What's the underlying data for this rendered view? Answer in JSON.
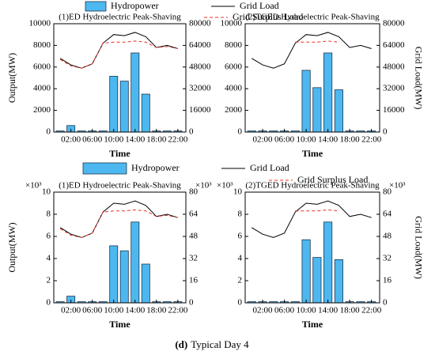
{
  "chart_data": [
    {
      "type": "bar_line",
      "title": "(1)ED Hydroelectric Peak-Shaving",
      "xlabel": "Time",
      "ylabel": "Output(MW)",
      "x": [
        0,
        2,
        4,
        6,
        8,
        10,
        12,
        14,
        16,
        18,
        20,
        22
      ],
      "series": [
        {
          "name": "Hydropower",
          "type": "bar",
          "axis": "y",
          "color": "#4db8ef",
          "values": [
            100,
            600,
            100,
            100,
            100,
            5150,
            4700,
            7300,
            3500,
            100,
            100,
            100
          ]
        },
        {
          "name": "Grid Load",
          "type": "line",
          "axis": "y2",
          "color": "#000000",
          "values": [
            54400,
            49600,
            47200,
            50400,
            65600,
            72000,
            71200,
            73600,
            70400,
            62400,
            64000,
            61600
          ]
        },
        {
          "name": "Grid Surplus Load",
          "type": "line",
          "dash": true,
          "axis": "y2",
          "color": "#e8332a",
          "values": [
            53600,
            48800,
            47200,
            50400,
            65600,
            66400,
            66400,
            67200,
            66400,
            62400,
            63200,
            61600
          ]
        }
      ],
      "xlim": [
        -1.2,
        23.5
      ],
      "xticks": [
        {
          "value": 2,
          "label": "02:00"
        },
        {
          "value": 6,
          "label": "06:00"
        },
        {
          "value": 10,
          "label": "10:00"
        },
        {
          "value": 14,
          "label": "14:00"
        },
        {
          "value": 18,
          "label": "18:00"
        },
        {
          "value": 22,
          "label": "22:00"
        }
      ],
      "ylim": [
        0,
        10000
      ],
      "yticks": [
        0,
        2000,
        4000,
        6000,
        8000,
        10000
      ],
      "y2lim": [
        0,
        80000
      ],
      "y2ticks": [
        0,
        16000,
        32000,
        48000,
        64000,
        80000
      ]
    },
    {
      "type": "bar_line",
      "title": "(2)TGED Hydroelectric Peak-Shaving",
      "xlabel": "Time",
      "y2label": "Grid Load(MW)",
      "x": [
        0,
        2,
        4,
        6,
        8,
        10,
        12,
        14,
        16,
        18,
        20,
        22
      ],
      "series": [
        {
          "name": "Hydropower",
          "type": "bar",
          "axis": "y",
          "color": "#4db8ef",
          "values": [
            100,
            100,
            100,
            100,
            100,
            5700,
            4100,
            7300,
            3900,
            100,
            100,
            100
          ]
        },
        {
          "name": "Grid Load",
          "type": "line",
          "axis": "y2",
          "color": "#000000",
          "values": [
            54400,
            49600,
            47200,
            50400,
            65600,
            72000,
            71200,
            73600,
            70400,
            62400,
            64000,
            61600
          ]
        },
        {
          "name": "Grid Surplus Load",
          "type": "line",
          "dash": true,
          "axis": "y2",
          "color": "#e8332a",
          "values": [
            null,
            null,
            null,
            null,
            66400,
            66400,
            66400,
            67200,
            66400,
            null,
            null,
            null
          ]
        }
      ],
      "xlim": [
        -1.2,
        23.5
      ],
      "xticks": [
        {
          "value": 2,
          "label": "02:00"
        },
        {
          "value": 6,
          "label": "06:00"
        },
        {
          "value": 10,
          "label": "10:00"
        },
        {
          "value": 14,
          "label": "14:00"
        },
        {
          "value": 18,
          "label": "18:00"
        },
        {
          "value": 22,
          "label": "22:00"
        }
      ],
      "ylim": [
        0,
        10000
      ],
      "yticks": [
        0,
        2000,
        4000,
        6000,
        8000,
        10000
      ],
      "y2lim": [
        0,
        80000
      ],
      "y2ticks": [
        0,
        16000,
        32000,
        48000,
        64000,
        80000
      ]
    },
    {
      "type": "bar_line",
      "title": "(1)ED Hydroelectric Peak-Shaving",
      "xlabel": "Time",
      "ylabel": "Output(MW)",
      "ymult": "×10³",
      "y2mult": "×10³",
      "x": [
        0,
        2,
        4,
        6,
        8,
        10,
        12,
        14,
        16,
        18,
        20,
        22
      ],
      "series": [
        {
          "name": "Hydropower",
          "type": "bar",
          "axis": "y",
          "color": "#4db8ef",
          "values": [
            0.1,
            0.6,
            0.1,
            0.1,
            0.1,
            5.15,
            4.7,
            7.3,
            3.5,
            0.1,
            0.1,
            0.1
          ]
        },
        {
          "name": "Grid Load",
          "type": "line",
          "axis": "y2",
          "color": "#000000",
          "values": [
            54.4,
            49.6,
            47.2,
            50.4,
            65.6,
            72,
            71.2,
            73.6,
            70.4,
            62.4,
            64,
            61.6
          ]
        },
        {
          "name": "Grid Surplus Load",
          "type": "line",
          "dash": true,
          "axis": "y2",
          "color": "#e8332a",
          "values": [
            53.6,
            48.8,
            47.2,
            50.4,
            65.6,
            66.4,
            66.4,
            67.2,
            66.4,
            62.4,
            63.2,
            61.6
          ]
        }
      ],
      "xlim": [
        -1.2,
        23.5
      ],
      "xticks": [
        {
          "value": 2,
          "label": "02:00"
        },
        {
          "value": 6,
          "label": "06:00"
        },
        {
          "value": 10,
          "label": "10:00"
        },
        {
          "value": 14,
          "label": "14:00"
        },
        {
          "value": 18,
          "label": "18:00"
        },
        {
          "value": 22,
          "label": "22:00"
        }
      ],
      "ylim": [
        0,
        10
      ],
      "yticks": [
        0,
        2,
        4,
        6,
        8,
        10
      ],
      "y2lim": [
        0,
        80
      ],
      "y2ticks": [
        0,
        16,
        32,
        48,
        64,
        80
      ]
    },
    {
      "type": "bar_line",
      "title": "(2)TGED Hydroelectric Peak-Shaving",
      "xlabel": "Time",
      "y2label": "Grid Load(MW)",
      "ymult": "×10³",
      "y2mult": "×10³",
      "x": [
        0,
        2,
        4,
        6,
        8,
        10,
        12,
        14,
        16,
        18,
        20,
        22
      ],
      "series": [
        {
          "name": "Hydropower",
          "type": "bar",
          "axis": "y",
          "color": "#4db8ef",
          "values": [
            0.1,
            0.1,
            0.1,
            0.1,
            0.1,
            5.7,
            4.1,
            7.3,
            3.9,
            0.1,
            0.1,
            0.1
          ]
        },
        {
          "name": "Grid Load",
          "type": "line",
          "axis": "y2",
          "color": "#000000",
          "values": [
            54.4,
            49.6,
            47.2,
            50.4,
            65.6,
            72,
            71.2,
            73.6,
            70.4,
            62.4,
            64,
            61.6
          ]
        },
        {
          "name": "Grid Surplus Load",
          "type": "line",
          "dash": true,
          "axis": "y2",
          "color": "#e8332a",
          "values": [
            null,
            null,
            null,
            null,
            66.4,
            66.4,
            66.4,
            67.2,
            66.4,
            null,
            null,
            null
          ]
        }
      ],
      "xlim": [
        -1.2,
        23.5
      ],
      "xticks": [
        {
          "value": 2,
          "label": "02:00"
        },
        {
          "value": 6,
          "label": "06:00"
        },
        {
          "value": 10,
          "label": "10:00"
        },
        {
          "value": 14,
          "label": "14:00"
        },
        {
          "value": 18,
          "label": "18:00"
        },
        {
          "value": 22,
          "label": "22:00"
        }
      ],
      "ylim": [
        0,
        10
      ],
      "yticks": [
        0,
        2,
        4,
        6,
        8,
        10
      ],
      "y2lim": [
        0,
        80
      ],
      "y2ticks": [
        0,
        16,
        32,
        48,
        64,
        80
      ]
    }
  ],
  "caption_label": "(d)",
  "caption": "Typical Day 4"
}
